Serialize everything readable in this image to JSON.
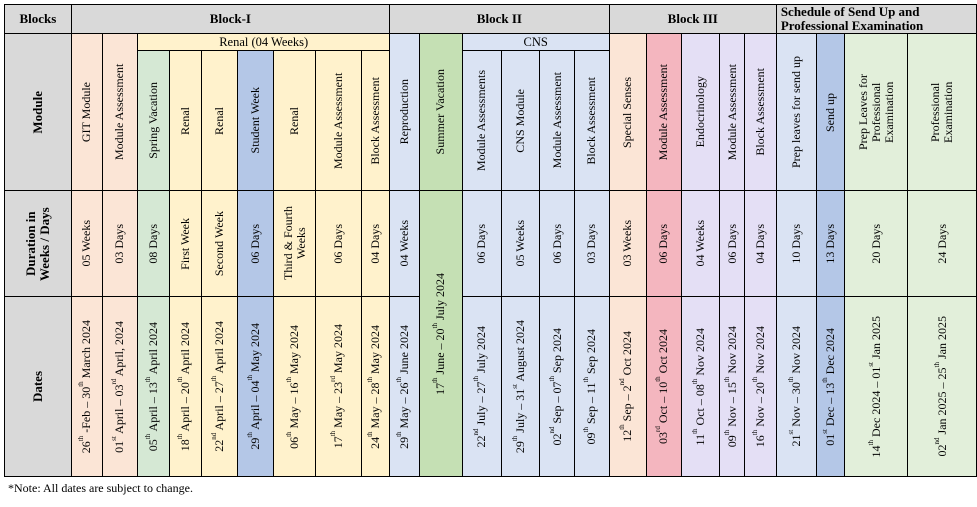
{
  "headers": {
    "blocks": "Blocks",
    "block1": "Block-I",
    "block2": "Block II",
    "block3": "Block III",
    "schedule": "Schedule of Send Up and Professional Examination",
    "renal_group": "Renal (04 Weeks)",
    "cns_group": "CNS"
  },
  "row_labels": {
    "module": "Module",
    "duration": "Duration in Weeks / Days",
    "dates": "Dates"
  },
  "columns": [
    {
      "module": "GIT Module",
      "duration": "05 Weeks",
      "dates": "26th -Feb – 30th March 2024",
      "color": "#fbe5d6"
    },
    {
      "module": "Module Assessment",
      "duration": "03 Days",
      "dates": "01st April – 03rd April, 2024",
      "color": "#fbe5d6"
    },
    {
      "module": "Spring Vacation",
      "duration": "08 Days",
      "dates": "05th April – 13th April 2024",
      "color": "#d5e8d4"
    },
    {
      "module": "Renal",
      "duration": "First Week",
      "dates": "18th April – 20th April 2024",
      "color": "#fff2cc"
    },
    {
      "module": "Renal",
      "duration": "Second Week",
      "dates": "22nd April – 27th April 2024",
      "color": "#fff2cc"
    },
    {
      "module": "Student Week",
      "duration": "06 Days",
      "dates": "29th April – 04th May 2024",
      "color": "#b4c7e7"
    },
    {
      "module": "Renal",
      "duration": "Third & Fourth Weeks",
      "dates": "06th May – 16th May 2024",
      "color": "#fff2cc"
    },
    {
      "module": "Module Assessment",
      "duration": "06 Days",
      "dates": "17th May – 23rd May 2024",
      "color": "#fff2cc"
    },
    {
      "module": "Block Assessment",
      "duration": "04 Days",
      "dates": "24th May – 28th May 2024",
      "color": "#fff2cc"
    },
    {
      "module": "Reproduction",
      "duration": "04 Weeks",
      "dates": "29th May – 26th June 2024",
      "color": "#dae3f3"
    },
    {
      "module": "Summer Vacation",
      "duration": "",
      "dates": "17th June – 20th July 2024",
      "color": "#c5e0b4"
    },
    {
      "module": "Module Assessments",
      "duration": "06 Days",
      "dates": "22nd July – 27th July 2024",
      "color": "#dae3f3"
    },
    {
      "module": "CNS Module",
      "duration": "05 Weeks",
      "dates": "29th July – 31st August 2024",
      "color": "#dae3f3"
    },
    {
      "module": "Module Assessment",
      "duration": "06 Days",
      "dates": "02nd Sep – 07th Sep 2024",
      "color": "#dae3f3"
    },
    {
      "module": "Block Assessment",
      "duration": "03 Days",
      "dates": "09th Sep – 11th Sep 2024",
      "color": "#dae3f3"
    },
    {
      "module": "Special Senses",
      "duration": "03 Weeks",
      "dates": "12th Sep – 2nd Oct 2024",
      "color": "#fbe5d6"
    },
    {
      "module": "Module Assessment",
      "duration": "06 Days",
      "dates": "03rd Oct – 10th Oct 2024",
      "color": "#f4b6bf"
    },
    {
      "module": "Endocrinology",
      "duration": "04 Weeks",
      "dates": "11th Oct – 08th Nov 2024",
      "color": "#e4dff5"
    },
    {
      "module": "Module Assessment",
      "duration": "06 Days",
      "dates": "09th Nov – 15th Nov 2024",
      "color": "#e4dff5"
    },
    {
      "module": "Block Assessment",
      "duration": "04 Days",
      "dates": "16th Nov – 20th Nov 2024",
      "color": "#e4dff5"
    },
    {
      "module": "Prep leaves for send up",
      "duration": "10 Days",
      "dates": "21st Nov – 30th Nov 2024",
      "color": "#dae3f3"
    },
    {
      "module": "Send up",
      "duration": "13 Days",
      "dates": "01st Dec – 13th Dec 2024",
      "color": "#b4c7e7"
    },
    {
      "module": "Prep Leaves for Professional Examination",
      "duration": "20 Days",
      "dates": "14th Dec 2024 – 01st Jan 2025",
      "color": "#e2efda"
    },
    {
      "module": "Professional Examination",
      "duration": "24 Days",
      "dates": "02nd Jan 2025 – 25th Jan 2025",
      "color": "#e2efda"
    }
  ],
  "note": "*Note: All dates are subject to change."
}
